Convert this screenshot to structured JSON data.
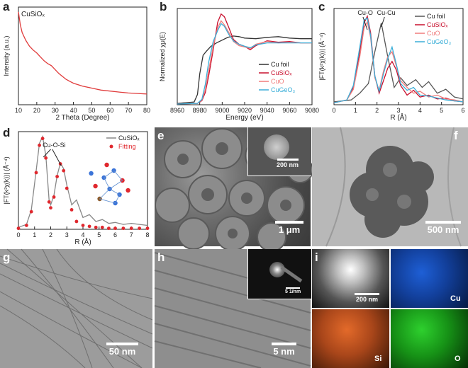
{
  "chart_data": [
    {
      "panel": "a",
      "type": "line",
      "sample_label": "CuSiOₓ",
      "xlabel": "2 Theta (Degree)",
      "ylabel": "Intensity (a.u.)",
      "xlim": [
        10,
        80
      ],
      "xticks": [
        10,
        20,
        30,
        40,
        50,
        60,
        70,
        80
      ],
      "series": [
        {
          "color": "#e03c3c",
          "x": [
            10,
            11,
            12,
            14,
            16,
            18,
            20,
            22,
            24,
            26,
            28,
            30,
            32,
            34,
            36,
            38,
            40,
            45,
            50,
            55,
            60,
            65,
            70,
            75,
            80
          ],
          "y": [
            0.95,
            0.82,
            0.74,
            0.66,
            0.6,
            0.56,
            0.53,
            0.49,
            0.45,
            0.42,
            0.4,
            0.36,
            0.32,
            0.29,
            0.26,
            0.24,
            0.22,
            0.19,
            0.17,
            0.15,
            0.14,
            0.13,
            0.12,
            0.115,
            0.11
          ]
        }
      ]
    },
    {
      "panel": "b",
      "type": "line",
      "xlabel": "Energy (eV)",
      "ylabel": "Normalized χμ(E)",
      "xlim": [
        8960,
        9080
      ],
      "xticks": [
        8960,
        8980,
        9000,
        9020,
        9040,
        9060,
        9080
      ],
      "legend": "bottom-right",
      "series": [
        {
          "name": "Cu foil",
          "color": "#333333",
          "x": [
            8960,
            8975,
            8978,
            8980,
            8983,
            8986,
            8990,
            8995,
            9000,
            9005,
            9010,
            9015,
            9020,
            9030,
            9040,
            9050,
            9060,
            9070,
            9080
          ],
          "y": [
            0.02,
            0.04,
            0.15,
            0.45,
            0.72,
            0.78,
            0.85,
            0.9,
            0.94,
            0.98,
            1.0,
            0.99,
            0.97,
            0.96,
            0.98,
            0.99,
            0.97,
            0.96,
            0.96
          ]
        },
        {
          "name": "CuSiOₓ",
          "color": "#c8102e",
          "x": [
            8960,
            8978,
            8982,
            8985,
            8988,
            8992,
            8996,
            8999,
            9002,
            9006,
            9010,
            9015,
            9020,
            9025,
            9030,
            9040,
            9050,
            9060,
            9070,
            9080
          ],
          "y": [
            0.01,
            0.02,
            0.06,
            0.18,
            0.42,
            0.8,
            1.2,
            1.32,
            1.28,
            1.12,
            0.95,
            0.88,
            0.85,
            0.8,
            0.86,
            0.93,
            0.91,
            0.92,
            0.9,
            0.9
          ]
        },
        {
          "name": "CuO",
          "color": "#f07c7c",
          "x": [
            8960,
            8978,
            8982,
            8985,
            8988,
            8992,
            8996,
            8999,
            9002,
            9006,
            9010,
            9015,
            9020,
            9025,
            9030,
            9040,
            9050,
            9060,
            9070,
            9080
          ],
          "y": [
            0.01,
            0.02,
            0.07,
            0.22,
            0.5,
            0.85,
            1.12,
            1.22,
            1.16,
            1.05,
            0.92,
            0.86,
            0.84,
            0.82,
            0.88,
            0.92,
            0.9,
            0.91,
            0.9,
            0.9
          ]
        },
        {
          "name": "CuGeO₃",
          "color": "#3aaed8",
          "x": [
            8960,
            8978,
            8982,
            8985,
            8988,
            8992,
            8996,
            8999,
            9002,
            9006,
            9010,
            9015,
            9020,
            9025,
            9030,
            9040,
            9050,
            9060,
            9070,
            9080
          ],
          "y": [
            0.01,
            0.02,
            0.08,
            0.3,
            0.62,
            0.92,
            1.08,
            1.18,
            1.14,
            1.02,
            0.93,
            0.88,
            0.85,
            0.83,
            0.87,
            0.9,
            0.9,
            0.9,
            0.9,
            0.9
          ]
        }
      ]
    },
    {
      "panel": "c",
      "type": "line",
      "xlabel": "R (Å)",
      "ylabel": "|FT(k²χ(k))| (Å⁻⁴)",
      "xlim": [
        0,
        6
      ],
      "xticks": [
        0,
        1,
        2,
        3,
        4,
        5,
        6
      ],
      "legend": "top-right",
      "annotations": [
        "Cu-O",
        "Cu-Cu"
      ],
      "series": [
        {
          "name": "Cu foil",
          "color": "#555555",
          "x": [
            0,
            0.8,
            1.2,
            1.6,
            1.9,
            2.2,
            2.5,
            2.8,
            3.1,
            3.4,
            3.8,
            4.1,
            4.4,
            4.8,
            5.2,
            5.6,
            6.0
          ],
          "y": [
            0.03,
            0.05,
            0.12,
            0.22,
            0.55,
            0.85,
            0.5,
            0.18,
            0.28,
            0.2,
            0.26,
            0.18,
            0.24,
            0.12,
            0.16,
            0.08,
            0.06
          ]
        },
        {
          "name": "CuSiOₓ",
          "color": "#c8102e",
          "x": [
            0,
            0.6,
            0.9,
            1.2,
            1.4,
            1.55,
            1.7,
            1.9,
            2.1,
            2.3,
            2.5,
            2.7,
            2.9,
            3.1,
            3.4,
            3.7,
            4.0,
            4.4,
            4.8,
            5.2,
            5.6,
            6.0
          ],
          "y": [
            0.02,
            0.05,
            0.18,
            0.55,
            0.85,
            0.92,
            0.75,
            0.3,
            0.12,
            0.25,
            0.38,
            0.45,
            0.36,
            0.2,
            0.1,
            0.15,
            0.08,
            0.1,
            0.06,
            0.07,
            0.04,
            0.03
          ]
        },
        {
          "name": "CuO",
          "color": "#f07c7c",
          "x": [
            0,
            0.6,
            0.9,
            1.2,
            1.4,
            1.55,
            1.7,
            1.9,
            2.1,
            2.3,
            2.5,
            2.7,
            2.9,
            3.1,
            3.4,
            3.7,
            4.0,
            4.4,
            4.8,
            5.2,
            5.6,
            6.0
          ],
          "y": [
            0.02,
            0.05,
            0.16,
            0.5,
            0.8,
            0.86,
            0.7,
            0.28,
            0.15,
            0.35,
            0.5,
            0.55,
            0.4,
            0.25,
            0.18,
            0.12,
            0.14,
            0.08,
            0.1,
            0.06,
            0.05,
            0.03
          ]
        },
        {
          "name": "CuGeO₃",
          "color": "#3aaed8",
          "x": [
            0,
            0.6,
            0.9,
            1.2,
            1.4,
            1.55,
            1.7,
            1.9,
            2.1,
            2.3,
            2.5,
            2.7,
            2.9,
            3.1,
            3.4,
            3.7,
            4.0,
            4.4,
            4.8,
            5.2,
            5.6,
            6.0
          ],
          "y": [
            0.02,
            0.05,
            0.2,
            0.6,
            0.88,
            0.9,
            0.72,
            0.3,
            0.14,
            0.32,
            0.48,
            0.6,
            0.42,
            0.22,
            0.15,
            0.18,
            0.1,
            0.09,
            0.07,
            0.05,
            0.04,
            0.03
          ]
        }
      ]
    },
    {
      "panel": "d",
      "type": "line",
      "xlabel": "R (Å)",
      "ylabel": "|FT(k²χ(k))| (Å⁻⁴)",
      "xlim": [
        0,
        8
      ],
      "xticks": [
        0,
        1,
        2,
        3,
        4,
        5,
        6,
        7,
        8
      ],
      "legend": "top-right",
      "annotations": [
        "Cu-O-Si"
      ],
      "series": [
        {
          "name": "CuSiOₓ",
          "color": "#888888",
          "x": [
            0,
            0.5,
            0.8,
            1.1,
            1.3,
            1.5,
            1.7,
            1.9,
            2.0,
            2.2,
            2.4,
            2.6,
            2.8,
            3.0,
            3.3,
            3.6,
            4.0,
            4.4,
            4.8,
            5.2,
            5.6,
            6.0,
            6.5,
            7.0,
            7.5,
            8.0
          ],
          "y": [
            0.02,
            0.05,
            0.2,
            0.6,
            0.88,
            0.95,
            0.75,
            0.3,
            0.25,
            0.35,
            0.55,
            0.68,
            0.62,
            0.45,
            0.25,
            0.3,
            0.12,
            0.15,
            0.08,
            0.1,
            0.06,
            0.07,
            0.05,
            0.06,
            0.05,
            0.04
          ]
        },
        {
          "name": "Fitting",
          "color": "#e0282e",
          "x": [
            0,
            0.5,
            0.8,
            1.1,
            1.3,
            1.5,
            1.7,
            1.9,
            2.0,
            2.2,
            2.4,
            2.6,
            2.8,
            3.0,
            3.3,
            3.6,
            4.0,
            4.4,
            4.8,
            5.2,
            5.6,
            6.0,
            6.5,
            7.0,
            7.5,
            8.0
          ],
          "y": [
            0.01,
            0.04,
            0.18,
            0.58,
            0.86,
            0.93,
            0.73,
            0.28,
            0.22,
            0.33,
            0.54,
            0.67,
            0.6,
            0.42,
            0.2,
            0.08,
            0.04,
            0.03,
            0.02,
            0.02,
            0.01,
            0.01,
            0.01,
            0.01,
            0.01,
            0.01
          ]
        }
      ]
    }
  ],
  "panels": {
    "a": {
      "letter": "a"
    },
    "b": {
      "letter": "b"
    },
    "c": {
      "letter": "c"
    },
    "d": {
      "letter": "d"
    },
    "e": {
      "letter": "e",
      "scale": "1 μm",
      "inset_scale": "200 nm"
    },
    "f": {
      "letter": "f",
      "scale": "500 nm"
    },
    "g": {
      "letter": "g",
      "scale": "50 nm"
    },
    "h": {
      "letter": "h",
      "scale": "5 nm",
      "inset_scale": "5 1/nm"
    },
    "i": {
      "letter": "i",
      "scale": "200 nm",
      "maps": [
        "Cu",
        "Si",
        "O"
      ]
    }
  }
}
